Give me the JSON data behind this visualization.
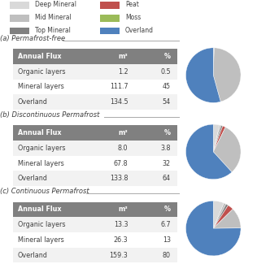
{
  "legend_items": [
    {
      "label": "Deep Mineral",
      "color": "#d9d9d9"
    },
    {
      "label": "Mid Mineral",
      "color": "#bfbfbf"
    },
    {
      "label": "Top Mineral",
      "color": "#808080"
    },
    {
      "label": "Peat",
      "color": "#c0504d"
    },
    {
      "label": "Moss",
      "color": "#9bbb59"
    },
    {
      "label": "Overland",
      "color": "#4f81bd"
    }
  ],
  "cases": [
    {
      "label": "(a) Permafrost-free",
      "table_rows": [
        [
          "Organic layers",
          "1.2",
          "0.5"
        ],
        [
          "Mineral layers",
          "111.7",
          "45"
        ],
        [
          "Overland",
          "134.5",
          "54"
        ]
      ],
      "pie": {
        "slices": [
          0.5,
          45,
          54
        ],
        "colors": [
          "#d9d9d9",
          "#bfbfbf",
          "#4f81bd"
        ],
        "startangle": 90
      }
    },
    {
      "label": "(b) Discontinuous Permafrost",
      "table_rows": [
        [
          "Organic layers",
          "8.0",
          "3.8"
        ],
        [
          "Mineral layers",
          "67.8",
          "32"
        ],
        [
          "Overland",
          "133.8",
          "64"
        ]
      ],
      "pie": {
        "slices": [
          3.8,
          1.0,
          1.0,
          1.8,
          32,
          64
        ],
        "colors": [
          "#d9d9d9",
          "#bfbfbf",
          "#808080",
          "#c0504d",
          "#bfbfbf",
          "#4f81bd"
        ],
        "startangle": 90
      }
    },
    {
      "label": "(c) Continuous Permafrost",
      "table_rows": [
        [
          "Organic layers",
          "13.3",
          "6.7"
        ],
        [
          "Mineral layers",
          "26.3",
          "13"
        ],
        [
          "Overland",
          "159.3",
          "80"
        ]
      ],
      "pie": {
        "slices": [
          6.7,
          1.5,
          1.5,
          3.7,
          13,
          80
        ],
        "colors": [
          "#d9d9d9",
          "#bfbfbf",
          "#808080",
          "#c0504d",
          "#bfbfbf",
          "#4f81bd"
        ],
        "startangle": 90
      }
    }
  ],
  "table_header": [
    "Annual Flux",
    "m³",
    "%"
  ],
  "header_bg": "#808080",
  "header_fg": "#ffffff",
  "bg_color": "#f2f2f2"
}
